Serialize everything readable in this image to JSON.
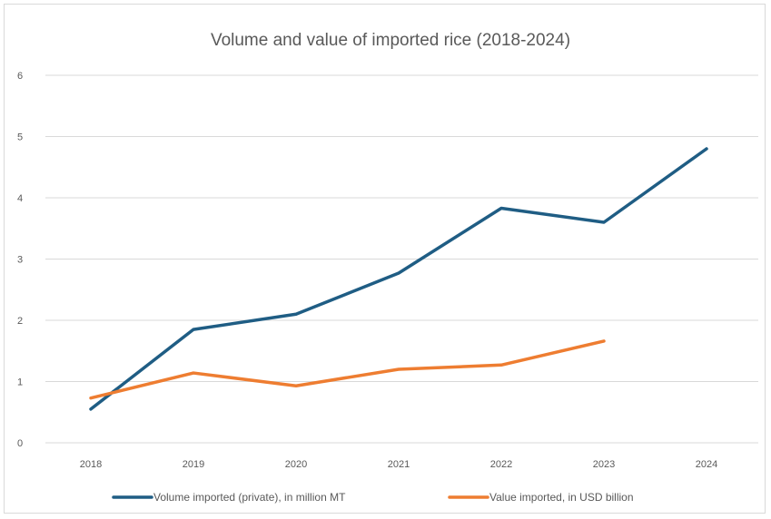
{
  "chart_data": {
    "type": "line",
    "title": "Volume and value of imported rice (2018-2024)",
    "xlabel": "",
    "ylabel": "",
    "categories": [
      "2018",
      "2019",
      "2020",
      "2021",
      "2022",
      "2023",
      "2024"
    ],
    "y_ticks": [
      "0",
      "1",
      "2",
      "3",
      "4",
      "5",
      "6"
    ],
    "ylim": [
      0,
      6
    ],
    "grid": "horizontal",
    "legend_position": "bottom",
    "series": [
      {
        "name": "Volume imported (private), in million MT",
        "color": "#1f5d84",
        "values": [
          0.55,
          1.85,
          2.1,
          2.77,
          3.83,
          3.6,
          4.8
        ]
      },
      {
        "name": "Value imported, in USD billion",
        "color": "#ee7d31",
        "values": [
          0.73,
          1.14,
          0.93,
          1.2,
          1.27,
          1.66,
          null
        ]
      }
    ]
  }
}
